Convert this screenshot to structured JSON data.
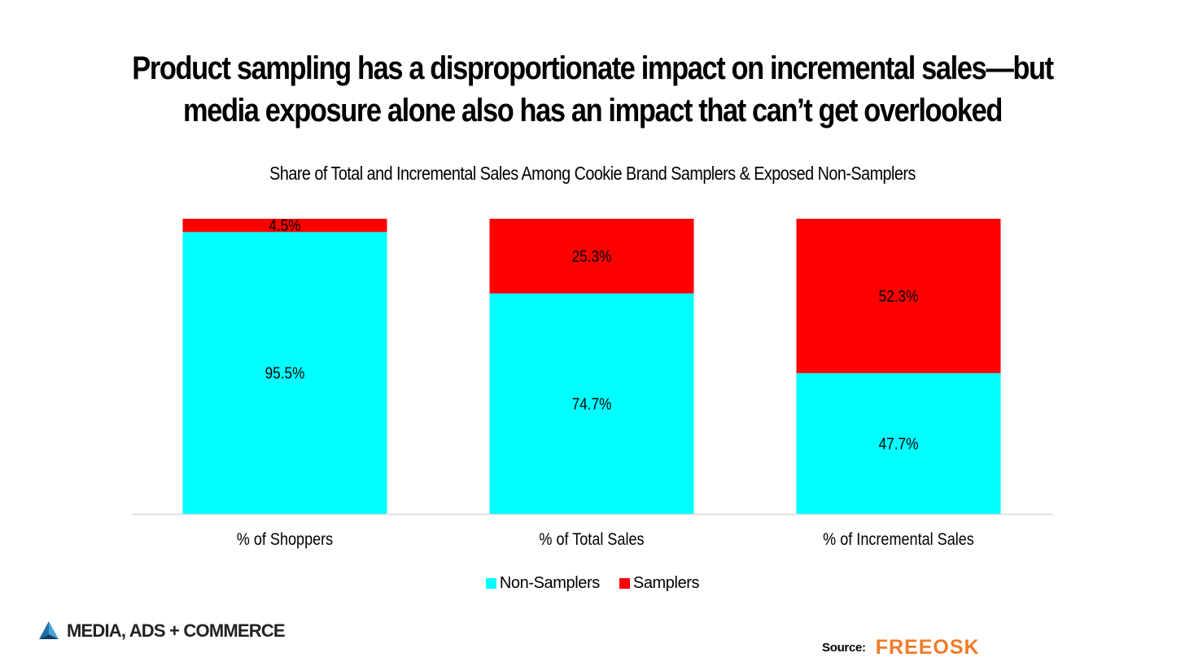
{
  "title": "Product sampling has a disproportionate impact on incremental sales—but media exposure alone also has an impact that can’t get overlooked",
  "colors": {
    "non_samplers": "#00ffff",
    "samplers": "#ff0000"
  },
  "chart_data": {
    "type": "bar",
    "stacked": true,
    "title": "Share of Total and Incremental Sales Among Cookie Brand Samplers & Exposed Non-Samplers",
    "xlabel": "",
    "ylabel": "",
    "ylim": [
      0,
      100
    ],
    "grid": false,
    "legend_position": "bottom",
    "categories": [
      "% of Shoppers",
      "% of Total Sales",
      "% of Incremental Sales"
    ],
    "series": [
      {
        "name": "Non-Samplers",
        "values": [
          95.5,
          74.7,
          47.7
        ],
        "labels": [
          "95.5%",
          "74.7%",
          "47.7%"
        ]
      },
      {
        "name": "Samplers",
        "values": [
          4.5,
          25.3,
          52.3
        ],
        "labels": [
          "4.5%",
          "25.3%",
          "52.3%"
        ]
      }
    ]
  },
  "footer": {
    "brand": "MEDIA, ADS + COMMERCE",
    "source_label": "Source:",
    "source_logo": "FREEOSK",
    "brand_icon": "pyramid-logo-icon"
  }
}
